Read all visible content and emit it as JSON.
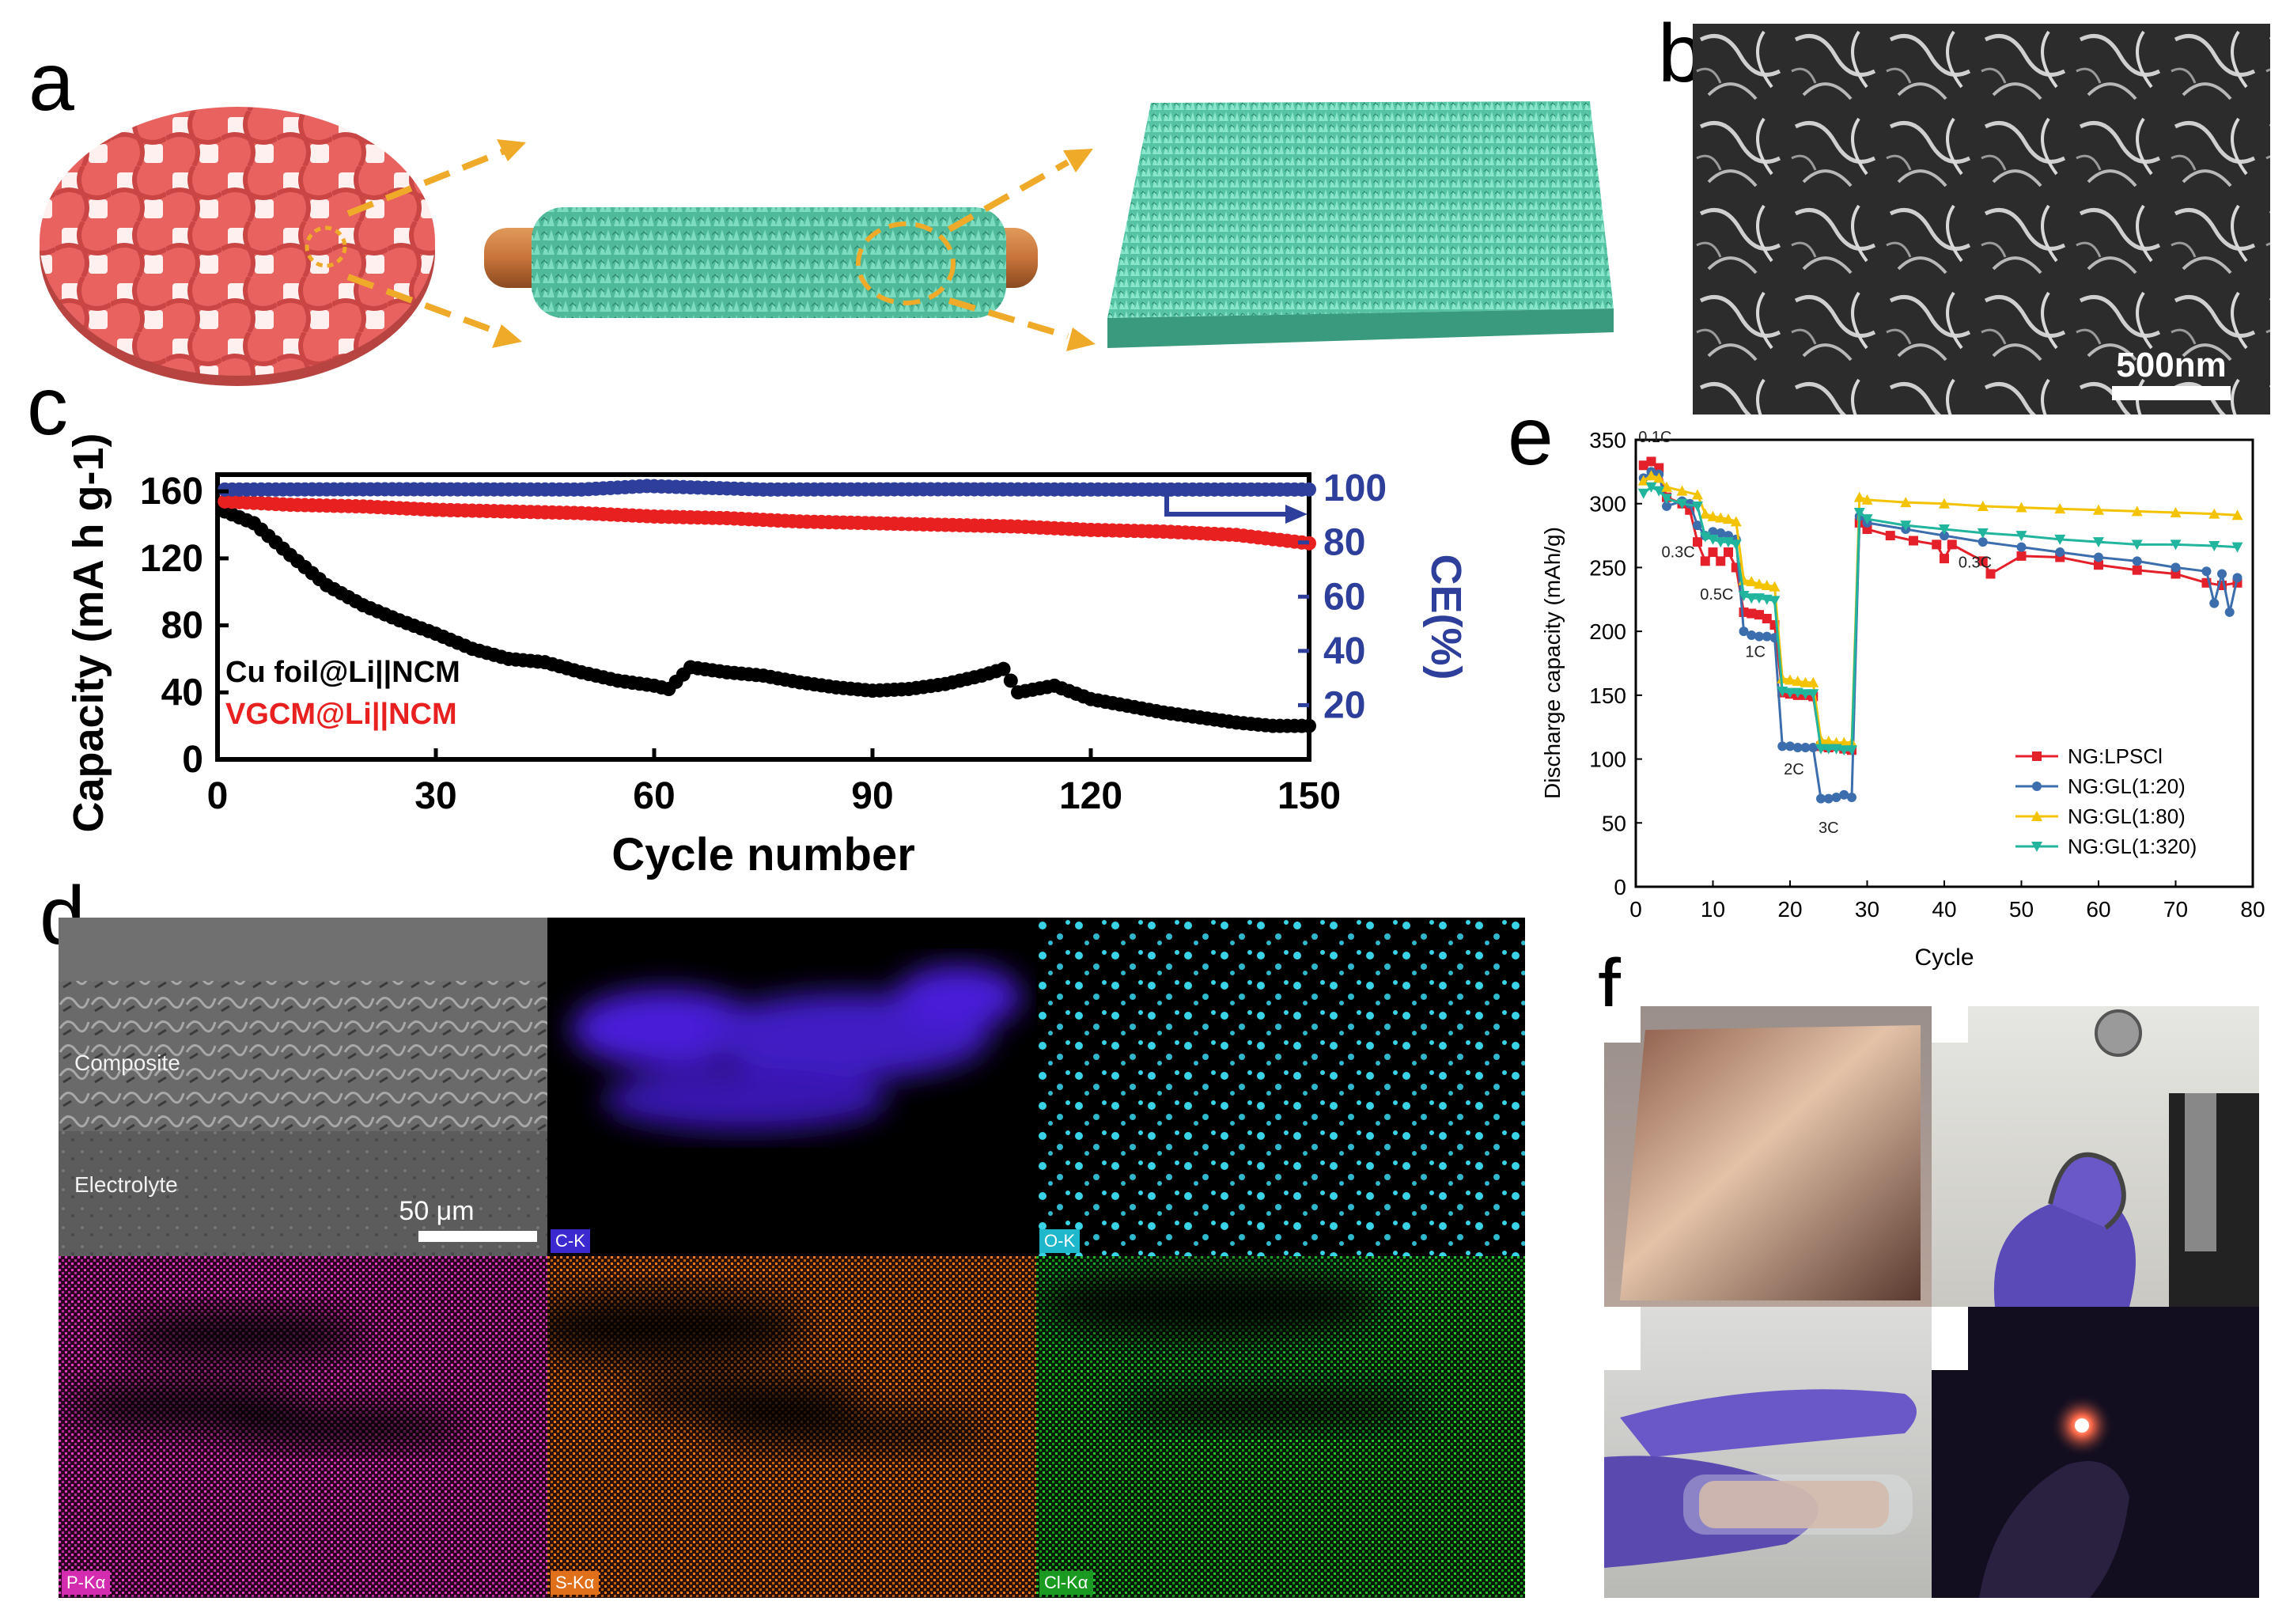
{
  "panels": {
    "a": {
      "label": "a"
    },
    "b": {
      "label": "b",
      "scalebar": "500nm"
    },
    "c": {
      "label": "c"
    },
    "d": {
      "label": "d",
      "composite": "Composite",
      "electrolyte": "Electrolyte",
      "scalebar": "50 μm",
      "maps": [
        "C-K",
        "O-K",
        "P-Kα",
        "S-Kα",
        "Cl-Kα"
      ]
    },
    "e": {
      "label": "e"
    },
    "f": {
      "label": "f"
    }
  },
  "colors": {
    "mesh": "#e8625f",
    "graphene": "#5ccaaa",
    "copper": "#c8743a",
    "arrow": "#f0aa2a"
  },
  "chart_data": [
    {
      "id": "c",
      "type": "scatter",
      "xlabel": "Cycle number",
      "ylabel": "Capacity (mA h g-1)",
      "ylabel_right": "CE(%)",
      "xlim": [
        0,
        150
      ],
      "ylim": [
        0,
        170
      ],
      "ylim_right": [
        0,
        105
      ],
      "xticks": [
        "0",
        "30",
        "60",
        "90",
        "120",
        "150"
      ],
      "yticks": [
        "0",
        "40",
        "80",
        "120",
        "160"
      ],
      "yticks_right": [
        "20",
        "40",
        "60",
        "80",
        "100"
      ],
      "legend": [
        "Cu foil@Li||NCM",
        "VGCM@Li||NCM"
      ],
      "series": [
        {
          "name": "Cu foil@Li||NCM",
          "color": "#000000",
          "x": [
            1,
            5,
            10,
            15,
            20,
            25,
            30,
            35,
            40,
            45,
            50,
            55,
            60,
            62,
            65,
            70,
            75,
            80,
            85,
            90,
            95,
            100,
            105,
            108,
            110,
            115,
            120,
            125,
            130,
            135,
            140,
            145,
            150
          ],
          "y": [
            148,
            141,
            122,
            104,
            92,
            83,
            75,
            66,
            60,
            58,
            52,
            47,
            44,
            42,
            55,
            52,
            50,
            46,
            43,
            41,
            42,
            45,
            50,
            54,
            40,
            44,
            36,
            32,
            28,
            25,
            22,
            20,
            20
          ]
        },
        {
          "name": "VGCM@Li||NCM",
          "color": "#e82020",
          "x": [
            1,
            10,
            20,
            30,
            40,
            50,
            60,
            70,
            80,
            90,
            100,
            110,
            120,
            130,
            140,
            150
          ],
          "y": [
            154,
            152,
            151,
            149,
            148,
            147,
            145,
            144,
            142,
            141,
            140,
            139,
            137,
            136,
            134,
            129
          ]
        },
        {
          "name": "CE",
          "color": "#2e3f9b",
          "axis": "right",
          "x": [
            1,
            25,
            50,
            59,
            75,
            100,
            125,
            150
          ],
          "y": [
            99.5,
            99.6,
            99.5,
            100.8,
            99.5,
            99.6,
            99.5,
            99.5
          ]
        }
      ]
    },
    {
      "id": "e",
      "type": "line",
      "xlabel": "Cycle",
      "ylabel": "Discharge capacity (mAh/g)",
      "xlim": [
        0,
        80
      ],
      "ylim": [
        0,
        350
      ],
      "xticks": [
        "0",
        "10",
        "20",
        "30",
        "40",
        "50",
        "60",
        "70",
        "80"
      ],
      "yticks": [
        "0",
        "50",
        "100",
        "150",
        "200",
        "250",
        "300",
        "350"
      ],
      "rate_labels": [
        {
          "text": "0.1C",
          "x": 2.5,
          "y": 348
        },
        {
          "text": "0.3C",
          "x": 5.5,
          "y": 258
        },
        {
          "text": "0.5C",
          "x": 10.5,
          "y": 225
        },
        {
          "text": "1C",
          "x": 15.5,
          "y": 180
        },
        {
          "text": "2C",
          "x": 20.5,
          "y": 88
        },
        {
          "text": "3C",
          "x": 25,
          "y": 42
        },
        {
          "text": "0.3C",
          "x": 44,
          "y": 250
        }
      ],
      "series": [
        {
          "name": "NG:LPSCl",
          "color": "#e4202a",
          "marker": "square",
          "x": [
            1,
            2,
            3,
            4,
            6,
            7,
            8,
            9,
            10,
            11,
            12,
            13,
            14,
            15,
            16,
            17,
            18,
            19,
            20,
            21,
            22,
            23,
            24,
            25,
            26,
            27,
            28,
            29,
            30,
            33,
            36,
            39,
            40,
            41,
            45,
            46,
            50,
            55,
            60,
            65,
            70,
            74,
            76,
            78
          ],
          "y": [
            330,
            333,
            328,
            305,
            300,
            295,
            270,
            255,
            262,
            255,
            262,
            250,
            215,
            214,
            213,
            210,
            205,
            152,
            151,
            150,
            150,
            149,
            110,
            109,
            110,
            108,
            107,
            285,
            280,
            275,
            271,
            268,
            257,
            268,
            255,
            245,
            259,
            258,
            252,
            248,
            245,
            238,
            236,
            238
          ]
        },
        {
          "name": "NG:GL(1:20)",
          "color": "#3c6eae",
          "marker": "circle",
          "x": [
            1,
            2,
            3,
            4,
            6,
            7,
            8,
            9,
            10,
            11,
            12,
            13,
            14,
            15,
            16,
            17,
            18,
            19,
            20,
            21,
            22,
            23,
            24,
            25,
            26,
            27,
            28,
            29,
            30,
            35,
            40,
            45,
            50,
            55,
            60,
            65,
            70,
            74,
            75,
            76,
            77,
            78
          ],
          "y": [
            320,
            325,
            323,
            298,
            302,
            300,
            283,
            275,
            278,
            277,
            275,
            272,
            200,
            197,
            196,
            196,
            195,
            110,
            110,
            109,
            109,
            109,
            69,
            69,
            70,
            72,
            70,
            290,
            285,
            280,
            275,
            270,
            266,
            262,
            258,
            255,
            250,
            247,
            222,
            245,
            215,
            242
          ]
        },
        {
          "name": "NG:GL(1:80)",
          "color": "#f3c300",
          "marker": "triangle-up",
          "x": [
            1,
            2,
            3,
            4,
            6,
            8,
            9,
            10,
            11,
            12,
            13,
            14,
            15,
            16,
            17,
            18,
            19,
            20,
            21,
            22,
            23,
            24,
            25,
            26,
            27,
            28,
            29,
            30,
            35,
            40,
            45,
            50,
            55,
            60,
            65,
            70,
            75,
            78
          ],
          "y": [
            318,
            322,
            320,
            313,
            310,
            307,
            292,
            290,
            289,
            288,
            286,
            240,
            239,
            237,
            236,
            235,
            163,
            162,
            161,
            160,
            160,
            115,
            114,
            113,
            113,
            113,
            305,
            303,
            301,
            300,
            298,
            297,
            296,
            295,
            294,
            293,
            292,
            291
          ]
        },
        {
          "name": "NG:GL(1:320)",
          "color": "#22b59d",
          "marker": "triangle-down",
          "x": [
            1,
            2,
            3,
            4,
            6,
            8,
            9,
            10,
            11,
            12,
            13,
            14,
            15,
            16,
            17,
            18,
            19,
            20,
            21,
            22,
            23,
            24,
            25,
            26,
            27,
            28,
            29,
            30,
            35,
            40,
            45,
            50,
            55,
            60,
            65,
            70,
            75,
            78
          ],
          "y": [
            308,
            313,
            310,
            304,
            300,
            298,
            274,
            272,
            270,
            270,
            268,
            228,
            226,
            226,
            225,
            224,
            153,
            152,
            152,
            151,
            151,
            108,
            108,
            108,
            107,
            107,
            293,
            288,
            283,
            280,
            277,
            275,
            272,
            270,
            268,
            268,
            267,
            266
          ]
        }
      ]
    }
  ]
}
